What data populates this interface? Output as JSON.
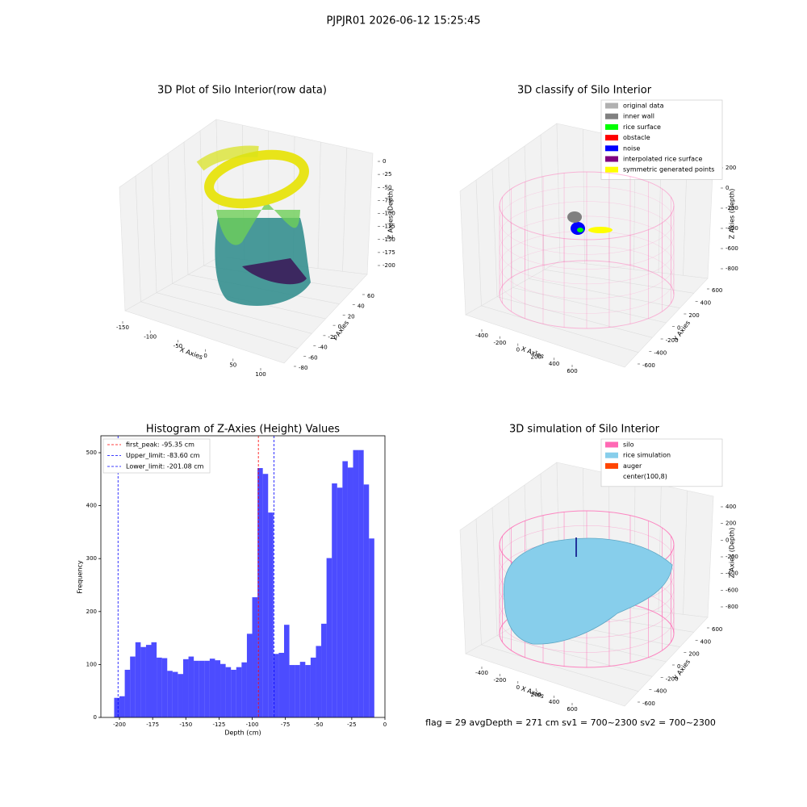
{
  "title": "PJPJR01 2026-06-12 15:25:45",
  "footer": "flag = 29  avgDepth = 271 cm  sv1 = 700~2300  sv2 = 700~2300",
  "chart_data": [
    {
      "type": "scatter3d",
      "title": "3D Plot of Silo Interior(row data)",
      "xlabel": "X Axies",
      "ylabel": "Y Axies",
      "zlabel": "Z Axies (Depth)",
      "xticks": [
        -150,
        -100,
        -50,
        0,
        50,
        100
      ],
      "yticks": [
        -80,
        -60,
        -40,
        -20,
        0,
        20,
        40,
        60
      ],
      "zticks": [
        0,
        -25,
        -50,
        -75,
        -100,
        -125,
        -150,
        -175,
        -200
      ]
    },
    {
      "type": "scatter3d",
      "title": "3D classify of Silo Interior",
      "xlabel": "X Axies",
      "ylabel": "Y Axies",
      "zlabel": "Z Axies (Depth)",
      "xticks": [
        -400,
        -200,
        0,
        200,
        400,
        600
      ],
      "yticks": [
        -600,
        -400,
        -200,
        0,
        200,
        400,
        600
      ],
      "zticks": [
        200,
        0,
        -200,
        -400,
        -600,
        -800
      ],
      "legend": [
        {
          "name": "original data",
          "color": "#b0b0b0"
        },
        {
          "name": "inner wall",
          "color": "#808080"
        },
        {
          "name": "rice surface",
          "color": "#00ff00"
        },
        {
          "name": "obstacle",
          "color": "#ff0000"
        },
        {
          "name": "noise",
          "color": "#0000ff"
        },
        {
          "name": "interpolated rice surface",
          "color": "#800080"
        },
        {
          "name": "symmetric generated points",
          "color": "#ffff00"
        }
      ]
    },
    {
      "type": "hist",
      "title": "Histogram of Z-Axies (Height) Values",
      "xlabel": "Depth (cm)",
      "ylabel": "Frequency",
      "color": "#0000ff",
      "bins": [
        -204,
        -200,
        -196,
        -192,
        -188,
        -184,
        -180,
        -176,
        -172,
        -168,
        -164,
        -160,
        -156,
        -152,
        -148,
        -144,
        -140,
        -136,
        -132,
        -128,
        -124,
        -120,
        -116,
        -112,
        -108,
        -104,
        -100,
        -96,
        -92,
        -88,
        -84,
        -80,
        -76,
        -72,
        -68,
        -64,
        -60,
        -56,
        -52,
        -48,
        -44,
        -40,
        -36,
        -32,
        -28,
        -24,
        -20,
        -16,
        -12,
        -8
      ],
      "counts": [
        37,
        40,
        90,
        115,
        142,
        133,
        137,
        142,
        113,
        112,
        88,
        86,
        82,
        110,
        115,
        107,
        107,
        107,
        111,
        108,
        101,
        95,
        90,
        95,
        104,
        158,
        227,
        471,
        460,
        387,
        120,
        122,
        175,
        99,
        99,
        105,
        99,
        113,
        135,
        177,
        301,
        442,
        434,
        484,
        472,
        505,
        505,
        440,
        338
      ],
      "xlim": [
        -214,
        0
      ],
      "ylim": [
        0,
        532
      ],
      "xticks": [
        -200,
        -175,
        -150,
        -125,
        -100,
        -75,
        -50,
        -25,
        0
      ],
      "yticks": [
        0,
        100,
        200,
        300,
        400,
        500
      ],
      "vlines": [
        {
          "name": "first_peak: -95.35 cm",
          "value": -95.35,
          "color": "#ff0000"
        },
        {
          "name": "Upper_limit: -83.60 cm",
          "value": -83.6,
          "color": "#0000ff"
        },
        {
          "name": "Lower_limit: -201.08 cm",
          "value": -201.08,
          "color": "#0000ff"
        }
      ]
    },
    {
      "type": "surface3d",
      "title": "3D simulation of Silo Interior",
      "xlabel": "X Axies",
      "ylabel": "Y Axies",
      "zlabel": "Z Axies (Depth)",
      "xticks": [
        -400,
        -200,
        0,
        200,
        400,
        600
      ],
      "yticks": [
        -600,
        -400,
        -200,
        0,
        200,
        400,
        600
      ],
      "zticks": [
        400,
        200,
        0,
        -200,
        -400,
        -600,
        -800
      ],
      "legend": [
        {
          "name": "silo",
          "color": "#ff69b4"
        },
        {
          "name": "rice simulation",
          "color": "#87ceeb"
        },
        {
          "name": "auger",
          "color": "#ff4500"
        },
        {
          "name": "center(100,8)",
          "color": "#ffffff"
        }
      ]
    }
  ]
}
